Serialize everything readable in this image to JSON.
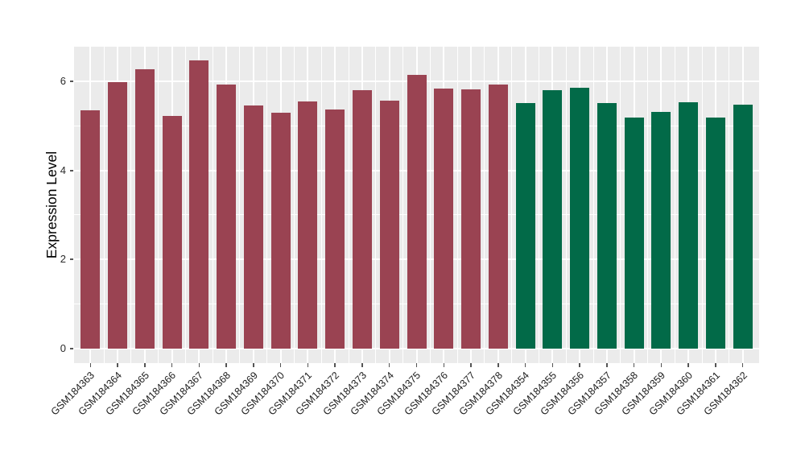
{
  "chart_data": {
    "type": "bar",
    "title": "",
    "xlabel": "",
    "ylabel": "Expression Level",
    "ylim": [
      -0.32,
      6.77
    ],
    "yticks": [
      0,
      2,
      4,
      6
    ],
    "yminorticks": [
      1,
      3,
      5
    ],
    "grid": "on",
    "legend": "none",
    "panel_bg": "#EBEBEB",
    "gridline_color": "#FFFFFF",
    "categories": [
      "GSM184363",
      "GSM184364",
      "GSM184365",
      "GSM184366",
      "GSM184367",
      "GSM184368",
      "GSM184369",
      "GSM184370",
      "GSM184371",
      "GSM184372",
      "GSM184373",
      "GSM184374",
      "GSM184375",
      "GSM184376",
      "GSM184377",
      "GSM184378",
      "GSM184354",
      "GSM184355",
      "GSM184356",
      "GSM184357",
      "GSM184358",
      "GSM184359",
      "GSM184360",
      "GSM184361",
      "GSM184362"
    ],
    "values": [
      5.35,
      5.97,
      6.27,
      5.21,
      6.47,
      5.92,
      5.45,
      5.29,
      5.54,
      5.36,
      5.8,
      5.57,
      6.13,
      5.84,
      5.81,
      5.92,
      5.5,
      5.8,
      5.85,
      5.5,
      5.19,
      5.3,
      5.53,
      5.19,
      5.47
    ],
    "bar_groups": [
      "A",
      "A",
      "A",
      "A",
      "A",
      "A",
      "A",
      "A",
      "A",
      "A",
      "A",
      "A",
      "A",
      "A",
      "A",
      "A",
      "B",
      "B",
      "B",
      "B",
      "B",
      "B",
      "B",
      "B",
      "B"
    ],
    "group_colors": {
      "A": "#9A4352",
      "B": "#026A48"
    }
  }
}
